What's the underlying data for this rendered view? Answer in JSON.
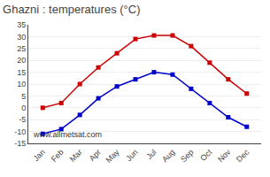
{
  "chart_data": {
    "type": "line",
    "title": "Ghazni : temperatures (°C)",
    "categories": [
      "Jan",
      "Feb",
      "Mar",
      "Apr",
      "May",
      "Jun",
      "Jul",
      "Aug",
      "Sep",
      "Oct",
      "Nov",
      "Dec"
    ],
    "series": [
      {
        "color": "#cc0000",
        "values": [
          0,
          2,
          10,
          17,
          23,
          29,
          30.5,
          30.5,
          26,
          19,
          12,
          6
        ]
      },
      {
        "color": "#0000cc",
        "values": [
          -11,
          -9,
          -3,
          4,
          9,
          12,
          15,
          14,
          8,
          2,
          -4,
          -8
        ]
      }
    ],
    "ylim": [
      -15,
      35
    ],
    "yticks": [
      -15,
      -10,
      -5,
      0,
      5,
      10,
      15,
      20,
      25,
      30,
      35
    ],
    "grid": true,
    "marker": "square",
    "annotations": [
      "www.allmetsat.com"
    ]
  }
}
